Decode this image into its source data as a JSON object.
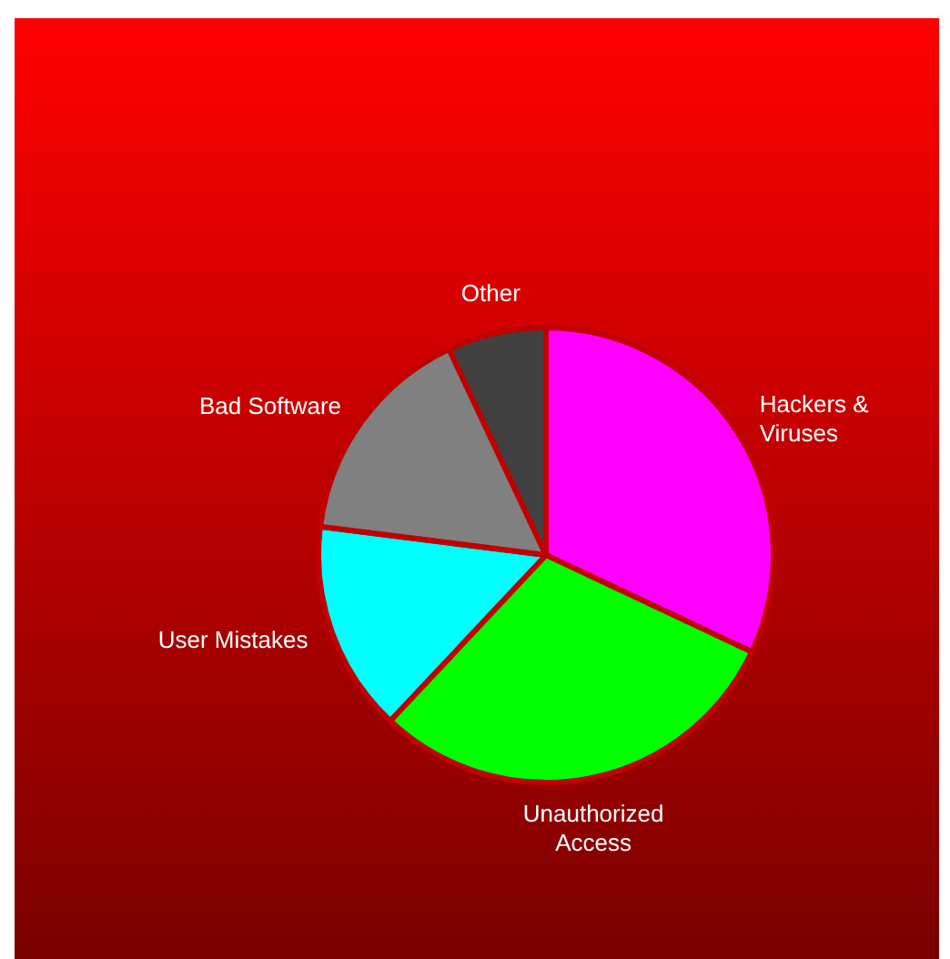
{
  "chart_data": {
    "type": "pie",
    "categories": [
      "Hackers & Viruses",
      "Unauthorized Access",
      "User Mistakes",
      "Bad Software",
      "Other"
    ],
    "values": [
      32,
      30,
      15,
      16,
      7
    ],
    "colors": [
      "#ff00ff",
      "#00ff00",
      "#00ffff",
      "#808080",
      "#404040"
    ]
  }
}
